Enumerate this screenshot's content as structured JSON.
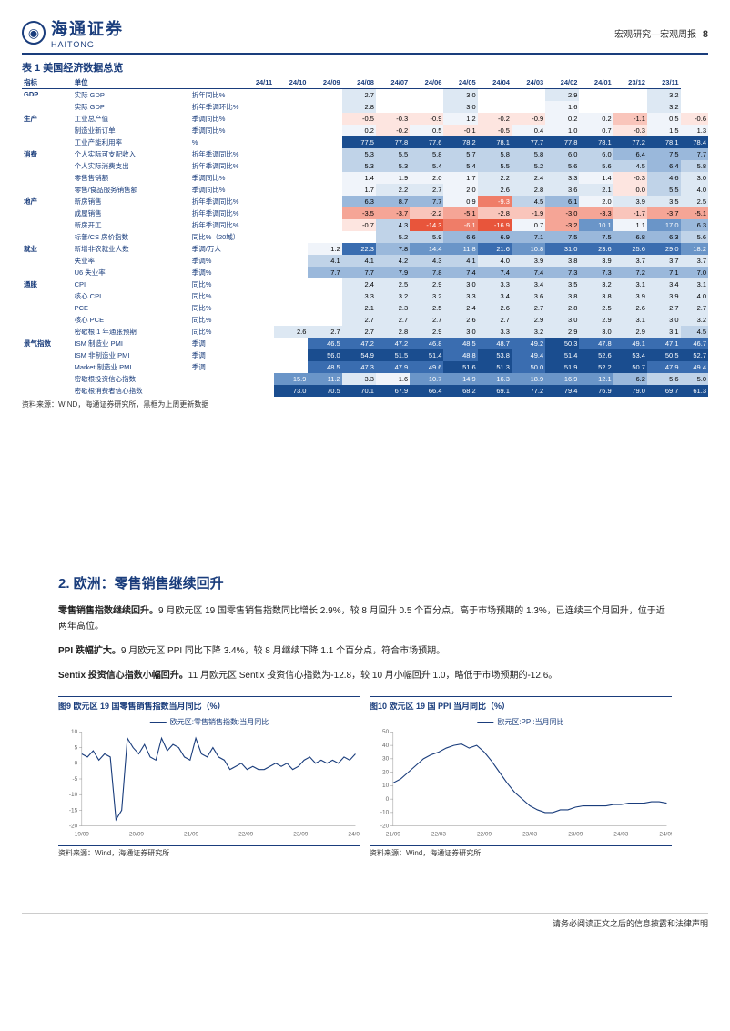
{
  "header": {
    "brand_cn": "海通证券",
    "brand_en": "HAITONG",
    "right": "宏观研究—宏观周报",
    "page": "8"
  },
  "table": {
    "title": "表 1 美国经济数据总览",
    "columns": [
      "指标",
      "单位",
      "24/11",
      "24/10",
      "24/09",
      "24/08",
      "24/07",
      "24/06",
      "24/05",
      "24/04",
      "24/03",
      "24/02",
      "24/01",
      "23/12",
      "23/11"
    ],
    "groups": [
      {
        "name": "GDP",
        "rows": [
          {
            "ind": "实际 GDP",
            "unit": "折年同比%",
            "vals": [
              "",
              "",
              "2.7",
              "",
              "",
              "3.0",
              "",
              "",
              "2.9",
              "",
              "",
              "3.2",
              ""
            ]
          },
          {
            "ind": "实际 GDP",
            "unit": "折年季调环比%",
            "vals": [
              "",
              "",
              "2.8",
              "",
              "",
              "3.0",
              "",
              "",
              "1.6",
              "",
              "",
              "3.2",
              ""
            ]
          }
        ]
      },
      {
        "name": "生产",
        "rows": [
          {
            "ind": "工业总产值",
            "unit": "季调同比%",
            "vals": [
              "",
              "",
              "-0.5",
              "-0.3",
              "-0.9",
              "1.2",
              "-0.2",
              "-0.9",
              "0.2",
              "0.2",
              "-1.1",
              "0.5",
              "-0.6"
            ]
          },
          {
            "ind": "制造业新订单",
            "unit": "季调同比%",
            "vals": [
              "",
              "",
              "0.2",
              "-0.2",
              "0.5",
              "-0.1",
              "-0.5",
              "0.4",
              "1.0",
              "0.7",
              "-0.3",
              "1.5",
              "1.3"
            ]
          },
          {
            "ind": "工业产能利用率",
            "unit": "%",
            "vals": [
              "",
              "",
              "77.5",
              "77.8",
              "77.6",
              "78.2",
              "78.1",
              "77.7",
              "77.8",
              "78.1",
              "77.2",
              "78.1",
              "78.4"
            ]
          }
        ]
      },
      {
        "name": "消费",
        "rows": [
          {
            "ind": "个人实际可支配收入",
            "unit": "折年季调同比%",
            "vals": [
              "",
              "",
              "5.3",
              "5.5",
              "5.8",
              "5.7",
              "5.8",
              "5.8",
              "6.0",
              "6.0",
              "6.4",
              "7.5",
              "7.7"
            ]
          },
          {
            "ind": "个人实际消费支出",
            "unit": "折年季调同比%",
            "vals": [
              "",
              "",
              "5.3",
              "5.3",
              "5.4",
              "5.4",
              "5.5",
              "5.2",
              "5.6",
              "5.6",
              "4.5",
              "6.4",
              "5.8"
            ]
          },
          {
            "ind": "零售售销额",
            "unit": "季调同比%",
            "vals": [
              "",
              "",
              "1.4",
              "1.9",
              "2.0",
              "1.7",
              "2.2",
              "2.4",
              "3.3",
              "1.4",
              "-0.3",
              "4.6",
              "3.0"
            ]
          },
          {
            "ind": "零售/食品服务销售额",
            "unit": "季调同比%",
            "vals": [
              "",
              "",
              "1.7",
              "2.2",
              "2.7",
              "2.0",
              "2.6",
              "2.8",
              "3.6",
              "2.1",
              "0.0",
              "5.5",
              "4.0"
            ]
          }
        ]
      },
      {
        "name": "地产",
        "rows": [
          {
            "ind": "新房销售",
            "unit": "折年季调同比%",
            "vals": [
              "",
              "",
              "6.3",
              "8.7",
              "7.7",
              "0.9",
              "-9.3",
              "4.5",
              "6.1",
              "2.0",
              "3.9",
              "3.5",
              "2.5"
            ]
          },
          {
            "ind": "成屋销售",
            "unit": "折年季调同比%",
            "vals": [
              "",
              "",
              "-3.5",
              "-3.7",
              "-2.2",
              "-5.1",
              "-2.8",
              "-1.9",
              "-3.0",
              "-3.3",
              "-1.7",
              "-3.7",
              "-5.1"
            ]
          },
          {
            "ind": "新房开工",
            "unit": "折年季调同比%",
            "vals": [
              "",
              "",
              "-0.7",
              "4.3",
              "-14.3",
              "-6.1",
              "-16.9",
              "0.7",
              "-3.2",
              "10.1",
              "1.1",
              "17.0",
              "6.3"
            ]
          },
          {
            "ind": "标普/CS 房价指数",
            "unit": "同比%（20城）",
            "vals": [
              "",
              "",
              "",
              "5.2",
              "5.9",
              "6.6",
              "6.9",
              "7.1",
              "7.5",
              "7.5",
              "6.8",
              "6.3",
              "5.6"
            ]
          }
        ]
      },
      {
        "name": "就业",
        "rows": [
          {
            "ind": "新增非农就业人数",
            "unit": "季调/万人",
            "vals": [
              "",
              "1.2",
              "22.3",
              "7.8",
              "14.4",
              "11.8",
              "21.6",
              "10.8",
              "31.0",
              "23.6",
              "25.6",
              "29.0",
              "18.2"
            ]
          },
          {
            "ind": "失业率",
            "unit": "季调%",
            "vals": [
              "",
              "4.1",
              "4.1",
              "4.2",
              "4.3",
              "4.1",
              "4.0",
              "3.9",
              "3.8",
              "3.9",
              "3.7",
              "3.7",
              "3.7"
            ]
          },
          {
            "ind": "U6 失业率",
            "unit": "季调%",
            "vals": [
              "",
              "7.7",
              "7.7",
              "7.9",
              "7.8",
              "7.4",
              "7.4",
              "7.4",
              "7.3",
              "7.3",
              "7.2",
              "7.1",
              "7.0"
            ]
          }
        ]
      },
      {
        "name": "通胀",
        "rows": [
          {
            "ind": "CPI",
            "unit": "同比%",
            "vals": [
              "",
              "",
              "2.4",
              "2.5",
              "2.9",
              "3.0",
              "3.3",
              "3.4",
              "3.5",
              "3.2",
              "3.1",
              "3.4",
              "3.1"
            ]
          },
          {
            "ind": "核心 CPI",
            "unit": "同比%",
            "vals": [
              "",
              "",
              "3.3",
              "3.2",
              "3.2",
              "3.3",
              "3.4",
              "3.6",
              "3.8",
              "3.8",
              "3.9",
              "3.9",
              "4.0"
            ]
          },
          {
            "ind": "PCE",
            "unit": "同比%",
            "vals": [
              "",
              "",
              "2.1",
              "2.3",
              "2.5",
              "2.4",
              "2.6",
              "2.7",
              "2.8",
              "2.5",
              "2.6",
              "2.7",
              "2.7"
            ]
          },
          {
            "ind": "核心 PCE",
            "unit": "同比%",
            "vals": [
              "",
              "",
              "2.7",
              "2.7",
              "2.7",
              "2.6",
              "2.7",
              "2.9",
              "3.0",
              "2.9",
              "3.1",
              "3.0",
              "3.2"
            ]
          },
          {
            "ind": "密歇根 1 年通胀预期",
            "unit": "同比%",
            "vals": [
              "2.6",
              "2.7",
              "2.7",
              "2.8",
              "2.9",
              "3.0",
              "3.3",
              "3.2",
              "2.9",
              "3.0",
              "2.9",
              "3.1",
              "4.5"
            ]
          }
        ]
      },
      {
        "name": "景气指数",
        "rows": [
          {
            "ind": "ISM 制造业 PMI",
            "unit": "季调",
            "vals": [
              "",
              "46.5",
              "47.2",
              "47.2",
              "46.8",
              "48.5",
              "48.7",
              "49.2",
              "50.3",
              "47.8",
              "49.1",
              "47.1",
              "46.7"
            ]
          },
          {
            "ind": "ISM 非制造业 PMI",
            "unit": "季调",
            "vals": [
              "",
              "56.0",
              "54.9",
              "51.5",
              "51.4",
              "48.8",
              "53.8",
              "49.4",
              "51.4",
              "52.6",
              "53.4",
              "50.5",
              "52.7"
            ]
          },
          {
            "ind": "Market 制造业 PMI",
            "unit": "季调",
            "vals": [
              "",
              "48.5",
              "47.3",
              "47.9",
              "49.6",
              "51.6",
              "51.3",
              "50.0",
              "51.9",
              "52.2",
              "50.7",
              "47.9",
              "49.4"
            ]
          },
          {
            "ind": "密歇根投资信心指数",
            "unit": "",
            "vals": [
              "15.9",
              "11.2",
              "3.3",
              "1.6",
              "10.7",
              "14.9",
              "16.3",
              "18.9",
              "16.9",
              "12.1",
              "6.2",
              "5.6",
              "5.0"
            ]
          },
          {
            "ind": "密歇根消费者信心指数",
            "unit": "",
            "vals": [
              "73.0",
              "70.5",
              "70.1",
              "67.9",
              "66.4",
              "68.2",
              "69.1",
              "77.2",
              "79.4",
              "76.9",
              "79.0",
              "69.7",
              "61.3"
            ]
          }
        ]
      }
    ],
    "source": "资料来源：WIND，海通证券研究所，黑框为上周更新数据"
  },
  "section": {
    "title": "2. 欧洲：零售销售继续回升",
    "paras": [
      {
        "bold": "零售销售指数继续回升。",
        "text": "9 月欧元区 19 国零售销售指数同比增长 2.9%，较 8 月回升 0.5 个百分点，高于市场预期的 1.3%，已连续三个月回升，位于近两年高位。"
      },
      {
        "bold": "PPI 跌幅扩大。",
        "text": "9 月欧元区 PPI 同比下降 3.4%，较 8 月继续下降 1.1 个百分点，符合市场预期。"
      },
      {
        "bold": "Sentix 投资信心指数小幅回升。",
        "text": "11 月欧元区 Sentix 投资信心指数为-12.8，较 10 月小幅回升 1.0，略低于市场预期的-12.6。"
      }
    ]
  },
  "chart9": {
    "title": "图9  欧元区 19 国零售销售指数当月同比（%）",
    "legend": "欧元区:零售销售指数:当月同比",
    "xlabels": [
      "19/09",
      "20/09",
      "21/09",
      "22/09",
      "23/09",
      "24/09"
    ],
    "yticks": [
      -20,
      -15,
      -10,
      -5,
      0,
      5,
      10
    ],
    "data": [
      3,
      2,
      4,
      1,
      3,
      2,
      -18,
      -15,
      8,
      5,
      3,
      6,
      2,
      1,
      8,
      4,
      6,
      5,
      2,
      1,
      8,
      3,
      2,
      5,
      2,
      1,
      -2,
      -1,
      0,
      -2,
      -1,
      -2,
      -2,
      -1,
      0,
      -1,
      0,
      -2,
      -1,
      1,
      2,
      0,
      1,
      0,
      1,
      0,
      2,
      1,
      3
    ],
    "source": "资料来源：Wind，海通证券研究所"
  },
  "chart10": {
    "title": "图10 欧元区 19 国 PPI 当月同比（%）",
    "legend": "欧元区:PPI:当月同比",
    "xlabels": [
      "21/09",
      "22/03",
      "22/09",
      "23/03",
      "23/09",
      "24/03",
      "24/09"
    ],
    "yticks": [
      -20,
      -10,
      0,
      10,
      20,
      30,
      40,
      50
    ],
    "data": [
      12,
      15,
      20,
      25,
      30,
      33,
      35,
      38,
      40,
      41,
      38,
      40,
      35,
      28,
      20,
      12,
      5,
      0,
      -5,
      -8,
      -10,
      -10,
      -8,
      -8,
      -6,
      -5,
      -5,
      -5,
      -5,
      -4,
      -4,
      -3,
      -3,
      -3,
      -2,
      -2,
      -3
    ],
    "source": "资料来源：Wind，海通证券研究所"
  },
  "footer": "请务必阅读正文之后的信息披露和法律声明"
}
